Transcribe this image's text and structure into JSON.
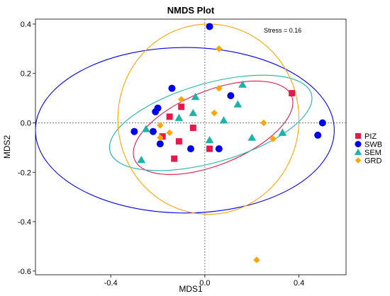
{
  "chart_data": {
    "type": "scatter",
    "title": "NMDS Plot",
    "xlabel": "MDS1",
    "ylabel": "MDS2",
    "xlim": [
      -0.72,
      0.6
    ],
    "ylim": [
      -0.615,
      0.42
    ],
    "xticks": [
      -0.4,
      0.0,
      0.4
    ],
    "xtick_labels": [
      "-0.4",
      "0.0",
      "0.4"
    ],
    "yticks": [
      -0.6,
      -0.4,
      -0.2,
      0.0,
      0.2,
      0.4
    ],
    "ytick_labels": [
      "-0.6",
      "-0.4",
      "-0.2",
      "0.0",
      "0.2",
      "0.4"
    ],
    "zero_lines": true,
    "grid": false,
    "legend_position": "right",
    "annotation": "Stress = 0.16",
    "series": [
      {
        "name": "PIZ",
        "color": "#E31A4B",
        "marker": "square",
        "points": [
          [
            0.37,
            0.12
          ],
          [
            -0.15,
            0.025
          ],
          [
            -0.1,
            0.065
          ],
          [
            -0.05,
            -0.02
          ],
          [
            -0.11,
            -0.075
          ],
          [
            -0.18,
            -0.055
          ],
          [
            -0.13,
            -0.145
          ],
          [
            0.02,
            -0.105
          ]
        ]
      },
      {
        "name": "SWB",
        "color": "#0000EE",
        "marker": "circle",
        "points": [
          [
            0.02,
            0.39
          ],
          [
            -0.14,
            0.14
          ],
          [
            0.11,
            0.11
          ],
          [
            -0.2,
            0.06
          ],
          [
            -0.21,
            0.045
          ],
          [
            -0.3,
            -0.035
          ],
          [
            -0.22,
            -0.035
          ],
          [
            -0.19,
            -0.085
          ],
          [
            -0.06,
            -0.105
          ],
          [
            0.06,
            -0.105
          ],
          [
            0.5,
            0.0
          ],
          [
            0.48,
            -0.05
          ]
        ]
      },
      {
        "name": "SEM",
        "color": "#20B2AA",
        "marker": "triangle",
        "points": [
          [
            -0.04,
            0.105
          ],
          [
            0.16,
            0.155
          ],
          [
            0.14,
            0.075
          ],
          [
            -0.05,
            0.04
          ],
          [
            -0.11,
            0.02
          ],
          [
            -0.25,
            -0.025
          ],
          [
            0.08,
            0.01
          ],
          [
            0.02,
            -0.07
          ],
          [
            0.33,
            -0.04
          ],
          [
            0.2,
            -0.06
          ],
          [
            -0.27,
            -0.15
          ]
        ]
      },
      {
        "name": "GRD",
        "color": "#FFA500",
        "marker": "diamond",
        "points": [
          [
            0.06,
            0.3
          ],
          [
            0.06,
            0.14
          ],
          [
            -0.1,
            0.095
          ],
          [
            0.04,
            0.04
          ],
          [
            0.25,
            0.0
          ],
          [
            -0.19,
            -0.01
          ],
          [
            -0.15,
            -0.04
          ],
          [
            -0.19,
            -0.06
          ],
          [
            0.29,
            -0.065
          ],
          [
            0.22,
            -0.555
          ]
        ]
      }
    ],
    "ellipses": [
      {
        "group": "PIZ",
        "color": "#E31A4B",
        "center": [
          0.035,
          -0.02
        ],
        "radii": [
          0.36,
          0.15
        ],
        "angle_deg": 22
      },
      {
        "group": "SWB",
        "color": "#0000EE",
        "center": [
          -0.085,
          -0.03
        ],
        "radii": [
          0.635,
          0.335
        ],
        "angle_deg": 0
      },
      {
        "group": "SEM",
        "color": "#20B2AA",
        "center": [
          0.025,
          0.0
        ],
        "radii": [
          0.445,
          0.16
        ],
        "angle_deg": 16
      },
      {
        "group": "GRD",
        "color": "#FFA500",
        "center": [
          0.015,
          0.015
        ],
        "radii": [
          0.385,
          0.385
        ],
        "angle_deg": 0
      }
    ]
  }
}
